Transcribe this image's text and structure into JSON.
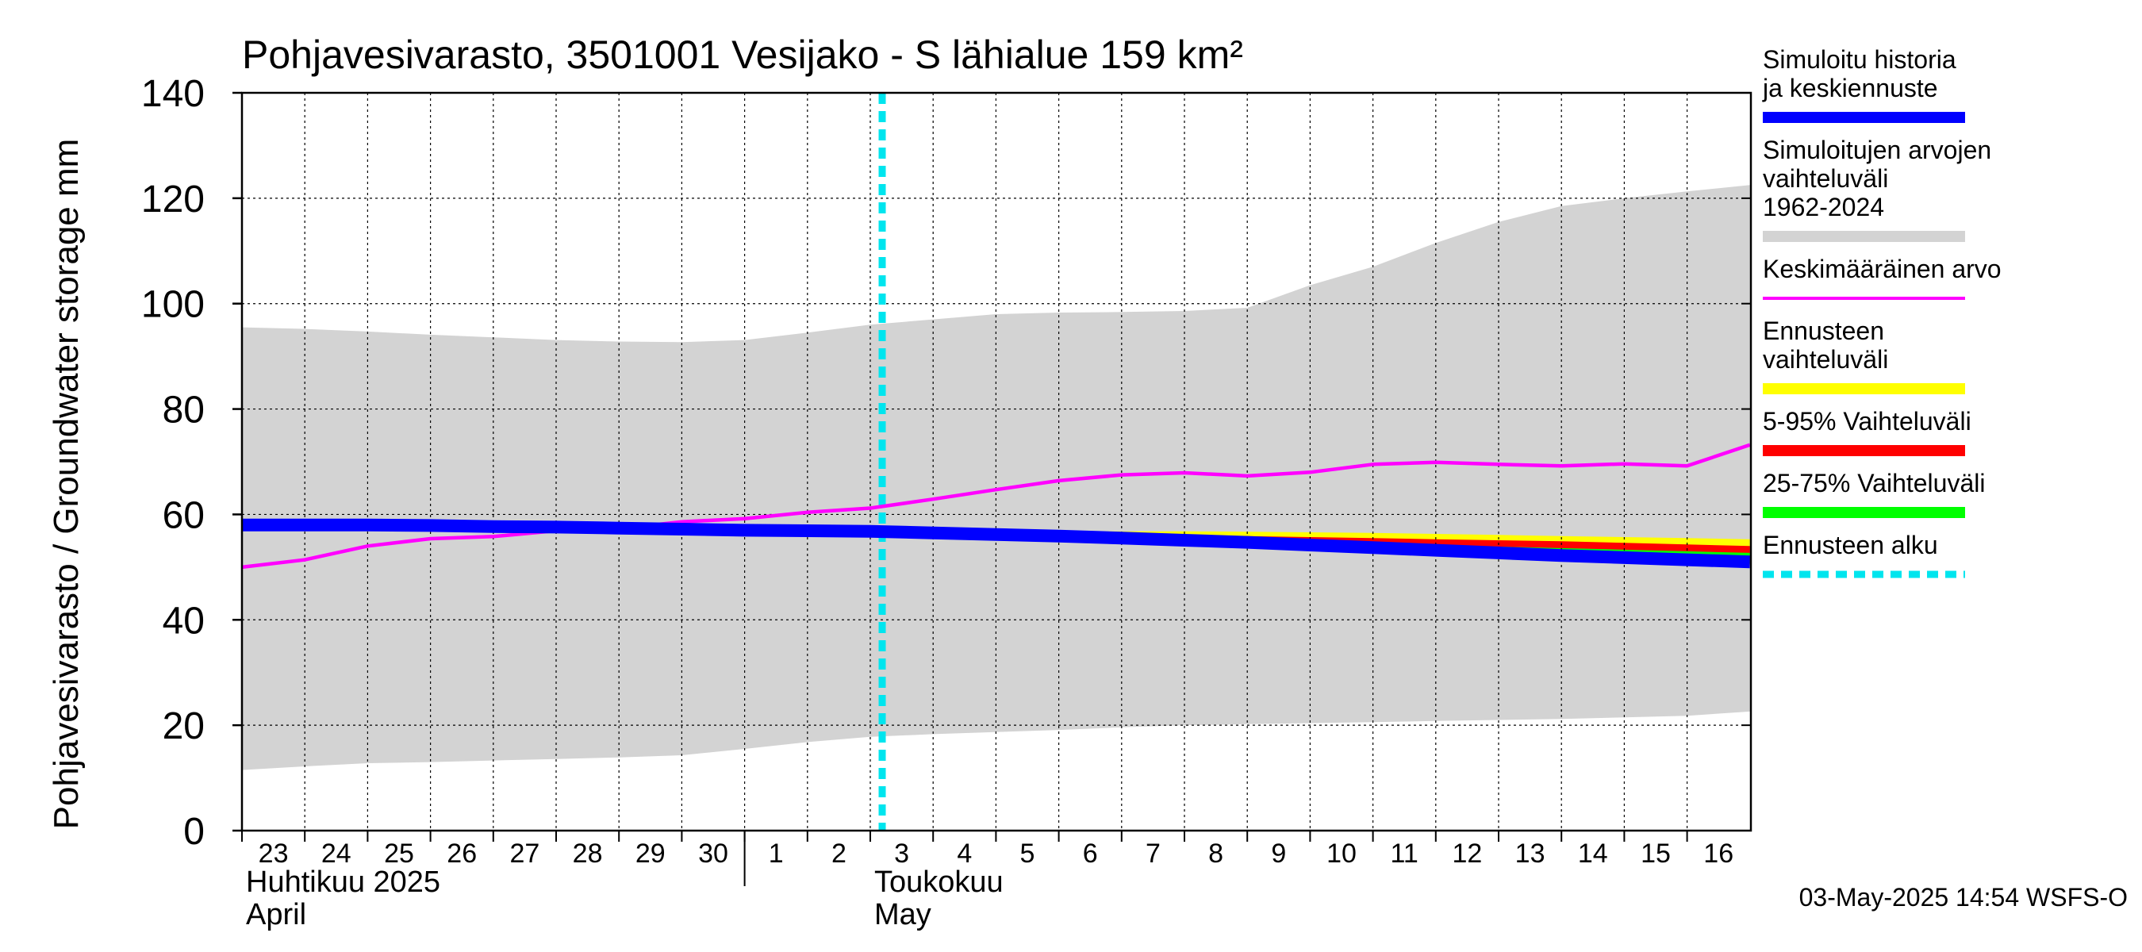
{
  "chart_data": {
    "type": "line",
    "title": "Pohjavesivarasto, 3501001 Vesijako - S lähialue 159 km²",
    "ylabel": "Pohjavesivarasto / Groundwater storage   mm",
    "ylim": [
      0,
      140
    ],
    "yticks": [
      0,
      20,
      40,
      60,
      80,
      100,
      120,
      140
    ],
    "grid": true,
    "legend_position": "right",
    "x_tick_labels": [
      "23",
      "24",
      "25",
      "26",
      "27",
      "28",
      "29",
      "30",
      "1",
      "2",
      "3",
      "4",
      "5",
      "6",
      "7",
      "8",
      "9",
      "10",
      "11",
      "12",
      "13",
      "14",
      "15",
      "16"
    ],
    "month_labels": [
      {
        "fi": "Huhtikuu  2025",
        "en": "April",
        "day": "23"
      },
      {
        "fi": "Toukokuu",
        "en": "May",
        "day": "3"
      }
    ],
    "forecast_start": "3",
    "timestamp": "03-May-2025 14:54 WSFS-O",
    "x": [
      "Apr 23",
      "Apr 24",
      "Apr 25",
      "Apr 26",
      "Apr 27",
      "Apr 28",
      "Apr 29",
      "Apr 30",
      "May 1",
      "May 2",
      "May 3",
      "May 4",
      "May 5",
      "May 6",
      "May 7",
      "May 8",
      "May 9",
      "May 10",
      "May 11",
      "May 12",
      "May 13",
      "May 14",
      "May 15",
      "May 16",
      "May 17"
    ],
    "series": [
      {
        "name": "Simuloitujen arvojen vaihteluväli 1962-2024",
        "kind": "band",
        "color": "#d3d3d3",
        "lower": [
          11.5,
          12.2,
          12.8,
          13.0,
          13.3,
          13.6,
          13.9,
          14.3,
          15.5,
          16.8,
          17.8,
          18.3,
          18.7,
          19.1,
          19.6,
          20.0,
          20.2,
          20.4,
          20.6,
          20.8,
          21.0,
          21.2,
          21.5,
          21.8,
          22.6
        ],
        "upper": [
          95.5,
          95.2,
          94.7,
          94.1,
          93.6,
          93.1,
          92.8,
          92.7,
          93.1,
          94.5,
          96.0,
          97.0,
          98.0,
          98.3,
          98.4,
          98.6,
          99.2,
          103.5,
          107.0,
          111.5,
          115.5,
          118.5,
          120.0,
          121.3,
          122.5
        ]
      },
      {
        "name": "Ennusteen vaihteluväli",
        "kind": "band",
        "color": "#ffff00",
        "lower": [
          null,
          null,
          null,
          null,
          null,
          null,
          null,
          null,
          null,
          null,
          56.8,
          56.4,
          56.0,
          55.6,
          55.2,
          54.8,
          54.3,
          53.8,
          53.3,
          52.8,
          52.3,
          51.8,
          51.3,
          50.8,
          50.3
        ],
        "upper": [
          null,
          null,
          null,
          null,
          null,
          null,
          null,
          null,
          null,
          null,
          56.8,
          56.8,
          56.8,
          56.8,
          56.8,
          56.8,
          56.7,
          56.6,
          56.5,
          56.3,
          56.1,
          55.9,
          55.7,
          55.5,
          55.3
        ]
      },
      {
        "name": "5-95% Vaihteluväli",
        "kind": "band",
        "color": "#ff0000",
        "lower": [
          null,
          null,
          null,
          null,
          null,
          null,
          null,
          null,
          null,
          null,
          56.8,
          56.4,
          56.0,
          55.6,
          55.2,
          54.8,
          54.3,
          53.8,
          53.3,
          52.8,
          52.3,
          51.8,
          51.4,
          51.0,
          50.6
        ],
        "upper": [
          null,
          null,
          null,
          null,
          null,
          null,
          null,
          null,
          null,
          null,
          56.8,
          56.7,
          56.6,
          56.5,
          56.3,
          56.1,
          55.9,
          55.7,
          55.5,
          55.3,
          55.1,
          54.9,
          54.6,
          54.3,
          54.0
        ]
      },
      {
        "name": "25-75% Vaihteluväli",
        "kind": "band",
        "color": "#00ff00",
        "lower": [
          null,
          null,
          null,
          null,
          null,
          null,
          null,
          null,
          null,
          null,
          56.8,
          56.5,
          56.1,
          55.7,
          55.3,
          54.9,
          54.4,
          53.9,
          53.4,
          52.9,
          52.4,
          51.9,
          51.5,
          51.1,
          50.7
        ],
        "upper": [
          null,
          null,
          null,
          null,
          null,
          null,
          null,
          null,
          null,
          null,
          56.8,
          56.6,
          56.3,
          56.0,
          55.7,
          55.4,
          55.1,
          54.8,
          54.5,
          54.2,
          53.9,
          53.6,
          53.3,
          53.0,
          52.7
        ]
      },
      {
        "name": "Keskimääräinen arvo",
        "kind": "line",
        "color": "#ff00ff",
        "values": [
          50.0,
          51.4,
          54.0,
          55.4,
          55.8,
          56.9,
          57.3,
          58.6,
          59.2,
          60.4,
          61.2,
          62.9,
          64.7,
          66.4,
          67.5,
          67.9,
          67.3,
          68.0,
          69.5,
          69.9,
          69.5,
          69.2,
          69.6,
          69.2,
          73.2
        ]
      },
      {
        "name": "Simuloitu historia ja keskiennuste",
        "kind": "line",
        "color": "#0000ff",
        "values": [
          58.0,
          58.0,
          58.0,
          57.9,
          57.7,
          57.6,
          57.4,
          57.2,
          57.0,
          56.9,
          56.8,
          56.5,
          56.2,
          55.9,
          55.5,
          55.1,
          54.7,
          54.2,
          53.7,
          53.2,
          52.7,
          52.2,
          51.8,
          51.4,
          51.0
        ]
      }
    ]
  },
  "legend": [
    {
      "label": "Simuloitu historia ja keskiennuste",
      "color": "#0000ff",
      "style": "thick"
    },
    {
      "label": "Simuloitujen arvojen vaihteluväli 1962-2024",
      "color": "#d3d3d3",
      "style": "thick"
    },
    {
      "label": "Keskimääräinen arvo",
      "color": "#ff00ff",
      "style": "thin"
    },
    {
      "label": "Ennusteen vaihteluväli",
      "color": "#ffff00",
      "style": "thick"
    },
    {
      "label": "5-95% Vaihteluväli",
      "color": "#ff0000",
      "style": "thick"
    },
    {
      "label": "25-75% Vaihteluväli",
      "color": "#00ff00",
      "style": "thick"
    },
    {
      "label": "Ennusteen alku",
      "color": "#00e5ee",
      "style": "dashed"
    }
  ]
}
